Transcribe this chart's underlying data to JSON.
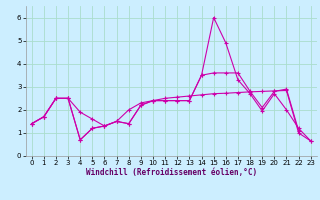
{
  "xlabel": "Windchill (Refroidissement éolien,°C)",
  "background_color": "#cceeff",
  "grid_color": "#aaddcc",
  "line_color": "#cc00aa",
  "x": [
    0,
    1,
    2,
    3,
    4,
    5,
    6,
    7,
    8,
    9,
    10,
    11,
    12,
    13,
    14,
    15,
    16,
    17,
    18,
    19,
    20,
    21,
    22,
    23
  ],
  "line1": [
    1.4,
    1.7,
    2.5,
    2.5,
    1.9,
    1.6,
    1.3,
    1.5,
    1.4,
    2.2,
    2.4,
    2.4,
    2.4,
    2.4,
    3.5,
    3.6,
    3.6,
    3.6,
    2.8,
    2.1,
    2.8,
    2.9,
    1.1,
    null
  ],
  "line2": [
    1.4,
    1.7,
    2.5,
    2.5,
    0.7,
    1.2,
    1.3,
    1.5,
    1.4,
    2.2,
    2.4,
    2.4,
    2.4,
    2.4,
    3.5,
    6.0,
    4.9,
    3.3,
    2.7,
    1.95,
    2.7,
    2.0,
    1.2,
    0.65
  ],
  "line3": [
    1.4,
    1.7,
    2.5,
    2.5,
    0.7,
    1.2,
    1.3,
    1.5,
    2.0,
    2.3,
    2.4,
    2.5,
    2.55,
    2.6,
    2.65,
    2.7,
    2.72,
    2.75,
    2.78,
    2.8,
    2.82,
    2.84,
    1.0,
    0.65
  ],
  "ylim": [
    0,
    6.5
  ],
  "xlim": [
    -0.5,
    23.5
  ],
  "yticks": [
    0,
    1,
    2,
    3,
    4,
    5,
    6
  ],
  "xticks": [
    0,
    1,
    2,
    3,
    4,
    5,
    6,
    7,
    8,
    9,
    10,
    11,
    12,
    13,
    14,
    15,
    16,
    17,
    18,
    19,
    20,
    21,
    22,
    23
  ],
  "xlabel_fontsize": 5.5,
  "tick_fontsize": 5.0
}
